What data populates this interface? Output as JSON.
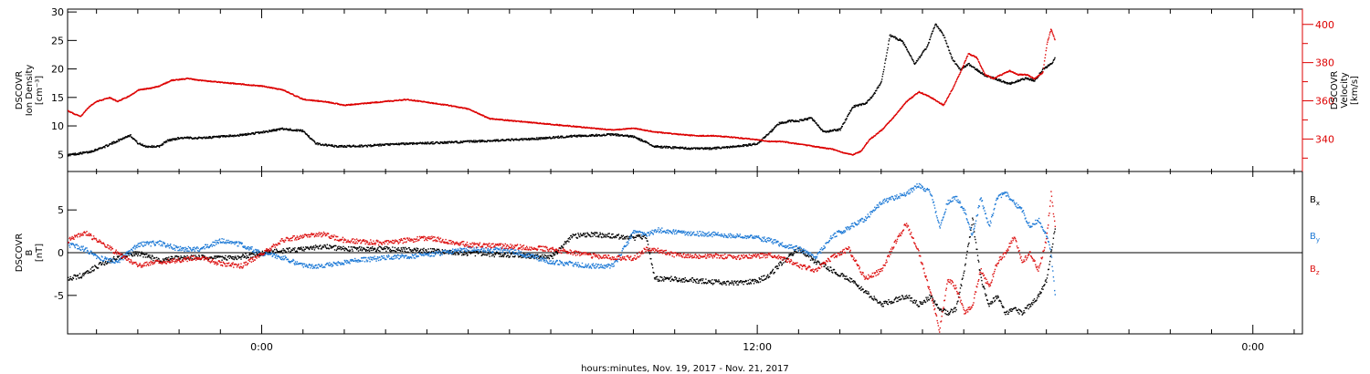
{
  "chart_data": [
    {
      "type": "scatter",
      "panel": "top",
      "xlabel": "hours:minutes, Nov. 19, 2017 - Nov. 21, 2017",
      "x_ticks": [
        "0:00",
        "12:00",
        "0:00"
      ],
      "x_tick_hours": [
        0,
        12,
        24
      ],
      "xlim": [
        -4.7,
        25.2
      ],
      "data_end_hour": 19.2,
      "y_left": {
        "label_lines": [
          "DSCOVR",
          "Ion Density",
          "[cm⁻³]"
        ],
        "ylim": [
          2,
          30.5
        ],
        "ticks": [
          5,
          10,
          15,
          20,
          25,
          30
        ]
      },
      "y_right": {
        "label_lines": [
          "DSCOVR",
          "Velocity",
          "[km/s]"
        ],
        "ylim": [
          323,
          408
        ],
        "ticks": [
          340,
          360,
          380,
          400
        ],
        "color": "#dd0000"
      },
      "series": [
        {
          "axis": "left",
          "color": "#000000",
          "x": [
            -4.7,
            -4.2,
            -3.8,
            -3.5,
            -3.2,
            -3.0,
            -2.8,
            -2.5,
            -2.3,
            -2.0,
            -1.5,
            -1.0,
            -0.5,
            0.0,
            0.5,
            1.0,
            1.3,
            1.8,
            2.5,
            3.5,
            4.5,
            5.5,
            6.5,
            7.5,
            8.5,
            9.0,
            9.5,
            10.0,
            10.5,
            11.0,
            11.5,
            12.0,
            12.3,
            12.5,
            12.8,
            13.0,
            13.3,
            13.6,
            14.0,
            14.3,
            14.6,
            14.8,
            15.0,
            15.2,
            15.5,
            15.8,
            16.1,
            16.3,
            16.5,
            16.7,
            16.9,
            17.1,
            17.3,
            17.5,
            17.7,
            17.9,
            18.1,
            18.3,
            18.5,
            18.7,
            18.9,
            19.1,
            19.2
          ],
          "y": [
            5,
            5.5,
            6.5,
            7.5,
            8.5,
            7,
            6.5,
            6.5,
            7.5,
            8,
            8,
            8.2,
            8.5,
            9,
            9.6,
            9.2,
            7,
            6.5,
            6.6,
            7,
            7.2,
            7.5,
            7.8,
            8.3,
            8.6,
            8.2,
            6.5,
            6.3,
            6.1,
            6.2,
            6.5,
            7,
            9,
            10.5,
            11,
            11,
            11.5,
            9,
            9.5,
            13.5,
            14,
            15.5,
            18,
            26,
            25,
            21,
            24,
            28,
            26,
            22,
            20,
            21,
            20,
            19,
            18.5,
            18,
            17.5,
            18,
            18.5,
            18,
            20,
            21,
            22
          ]
        },
        {
          "axis": "right",
          "color": "#dd0000",
          "x": [
            -4.7,
            -4.4,
            -4.2,
            -4.0,
            -3.7,
            -3.5,
            -3.2,
            -3.0,
            -2.7,
            -2.5,
            -2.2,
            -1.8,
            -1.5,
            -1.0,
            -0.5,
            0.0,
            0.5,
            1.0,
            1.5,
            2.0,
            2.5,
            3.0,
            3.5,
            4.5,
            5.0,
            5.5,
            6.5,
            7.5,
            8.5,
            9.0,
            9.5,
            10.0,
            10.5,
            11.0,
            11.5,
            12.0,
            12.3,
            12.6,
            12.9,
            13.2,
            13.5,
            13.8,
            14.1,
            14.3,
            14.5,
            14.7,
            15.0,
            15.3,
            15.6,
            15.9,
            16.2,
            16.5,
            16.7,
            16.9,
            17.1,
            17.3,
            17.5,
            17.7,
            17.9,
            18.1,
            18.3,
            18.5,
            18.7,
            18.9,
            19.0,
            19.1,
            19.2
          ],
          "y": [
            355,
            352,
            357,
            360,
            362,
            360,
            363,
            366,
            367,
            368,
            371,
            372,
            371,
            370,
            369,
            368,
            366,
            361,
            360,
            358,
            359,
            360,
            361,
            358,
            356,
            351,
            349,
            347,
            345,
            346,
            344,
            343,
            342,
            342,
            341,
            340,
            339,
            339,
            338,
            337,
            336,
            335,
            333,
            332,
            334,
            340,
            345,
            352,
            360,
            365,
            362,
            358,
            366,
            375,
            385,
            383,
            374,
            372,
            374,
            376,
            374,
            374,
            372,
            375,
            390,
            398,
            392
          ]
        }
      ]
    },
    {
      "type": "scatter",
      "panel": "bottom",
      "xlim": [
        -4.7,
        25.2
      ],
      "y_left": {
        "label_lines": [
          "DSCOVR",
          "B",
          "[nT]"
        ],
        "ylim": [
          -9.5,
          9.5
        ],
        "ticks": [
          -5,
          0,
          5
        ]
      },
      "zero_line": 0,
      "series": [
        {
          "name": "B",
          "subscript": "x",
          "color": "#000000",
          "x": [
            -4.7,
            -4.3,
            -4.0,
            -3.5,
            -3.0,
            -2.5,
            -2.0,
            -1.5,
            -1.0,
            -0.5,
            0.0,
            0.5,
            1.0,
            1.5,
            2.0,
            3.0,
            4.0,
            5.0,
            6.0,
            7.0,
            7.5,
            8.0,
            8.5,
            9.0,
            9.3,
            9.5,
            10.0,
            10.5,
            11.0,
            11.5,
            12.0,
            12.3,
            12.6,
            13.0,
            13.4,
            13.8,
            14.2,
            14.6,
            15.0,
            15.3,
            15.6,
            15.9,
            16.2,
            16.4,
            16.6,
            16.8,
            17.0,
            17.2,
            17.4,
            17.6,
            17.8,
            18.0,
            18.2,
            18.4,
            18.6,
            18.8,
            19.0,
            19.1,
            19.2
          ],
          "y": [
            -3,
            -2.5,
            -1.5,
            -0.5,
            0,
            -0.8,
            -0.5,
            -0.5,
            -0.6,
            -0.4,
            0,
            0.3,
            0.5,
            0.8,
            0.5,
            0.5,
            0.3,
            0,
            -0.2,
            -0.5,
            2,
            2.2,
            2,
            1.8,
            2,
            -3,
            -3,
            -3.2,
            -3.4,
            -3.5,
            -3.2,
            -2.5,
            -1,
            0.5,
            -1,
            -2,
            -3,
            -4.5,
            -6,
            -5.5,
            -5,
            -6,
            -5,
            -6.5,
            -7,
            -6.5,
            -2,
            4,
            -3,
            -6,
            -5,
            -7,
            -6.5,
            -7,
            -6,
            -5,
            -3,
            0,
            3
          ]
        },
        {
          "name": "B",
          "subscript": "y",
          "color": "#1e7ad6",
          "x": [
            -4.7,
            -4.3,
            -4.0,
            -3.5,
            -3.0,
            -2.5,
            -2.0,
            -1.5,
            -1.0,
            -0.5,
            0.0,
            0.5,
            1.0,
            1.5,
            2.0,
            3.0,
            4.0,
            5.0,
            6.0,
            7.0,
            8.0,
            8.5,
            9.0,
            9.3,
            9.6,
            10.0,
            10.5,
            11.0,
            11.5,
            12.0,
            12.3,
            12.6,
            13.0,
            13.4,
            13.8,
            14.2,
            14.6,
            15.0,
            15.3,
            15.6,
            15.9,
            16.2,
            16.4,
            16.6,
            16.8,
            17.0,
            17.2,
            17.4,
            17.6,
            17.8,
            18.0,
            18.2,
            18.4,
            18.6,
            18.8,
            19.0,
            19.1,
            19.2
          ],
          "y": [
            1,
            0.5,
            -0.5,
            -1,
            1,
            1.2,
            0.5,
            0.5,
            1.5,
            1,
            0,
            -0.5,
            -1.5,
            -1.5,
            -1,
            -0.5,
            -0.2,
            0.5,
            0.3,
            -1,
            -1.5,
            -1.5,
            2.5,
            2.2,
            2.7,
            2.5,
            2.3,
            2.2,
            2.0,
            1.8,
            1.5,
            1.0,
            0.5,
            -0.5,
            2,
            3,
            4,
            6,
            6.5,
            7,
            8,
            7,
            3,
            6,
            6.5,
            5,
            2,
            6.5,
            3,
            6.5,
            7,
            6,
            5,
            3,
            4,
            2,
            0,
            -5
          ]
        },
        {
          "name": "B",
          "subscript": "z",
          "color": "#dd1111",
          "x": [
            -4.7,
            -4.3,
            -4.0,
            -3.5,
            -3.0,
            -2.5,
            -2.0,
            -1.5,
            -1.0,
            -0.5,
            0.0,
            0.5,
            1.0,
            1.5,
            2.0,
            3.0,
            4.0,
            5.0,
            6.0,
            7.0,
            8.0,
            8.5,
            9.0,
            9.3,
            9.6,
            10.0,
            10.5,
            11.0,
            11.5,
            12.0,
            12.3,
            12.6,
            13.0,
            13.4,
            13.8,
            14.2,
            14.6,
            15.0,
            15.3,
            15.6,
            15.9,
            16.2,
            16.4,
            16.6,
            16.8,
            17.0,
            17.2,
            17.4,
            17.6,
            17.8,
            18.0,
            18.2,
            18.4,
            18.6,
            18.8,
            19.0,
            19.1,
            19.2
          ],
          "y": [
            1.5,
            2.5,
            1.5,
            0,
            -1.5,
            -1,
            -0.8,
            -0.5,
            -1.2,
            -1.5,
            0,
            1.5,
            2,
            2.2,
            1.5,
            1.2,
            1.8,
            1.0,
            0.8,
            0.5,
            -0.3,
            -0.5,
            -0.6,
            0.5,
            0.3,
            -0.2,
            -0.4,
            -0.3,
            -0.5,
            -0.3,
            -0.2,
            -0.5,
            -1.5,
            -2,
            -0.5,
            0.5,
            -3,
            -2,
            1,
            3.5,
            0,
            -5,
            -9,
            -3,
            -4,
            -7,
            -6,
            -2,
            -4,
            -1,
            0,
            2,
            -1,
            0,
            -2,
            2,
            7,
            3
          ]
        }
      ]
    }
  ]
}
